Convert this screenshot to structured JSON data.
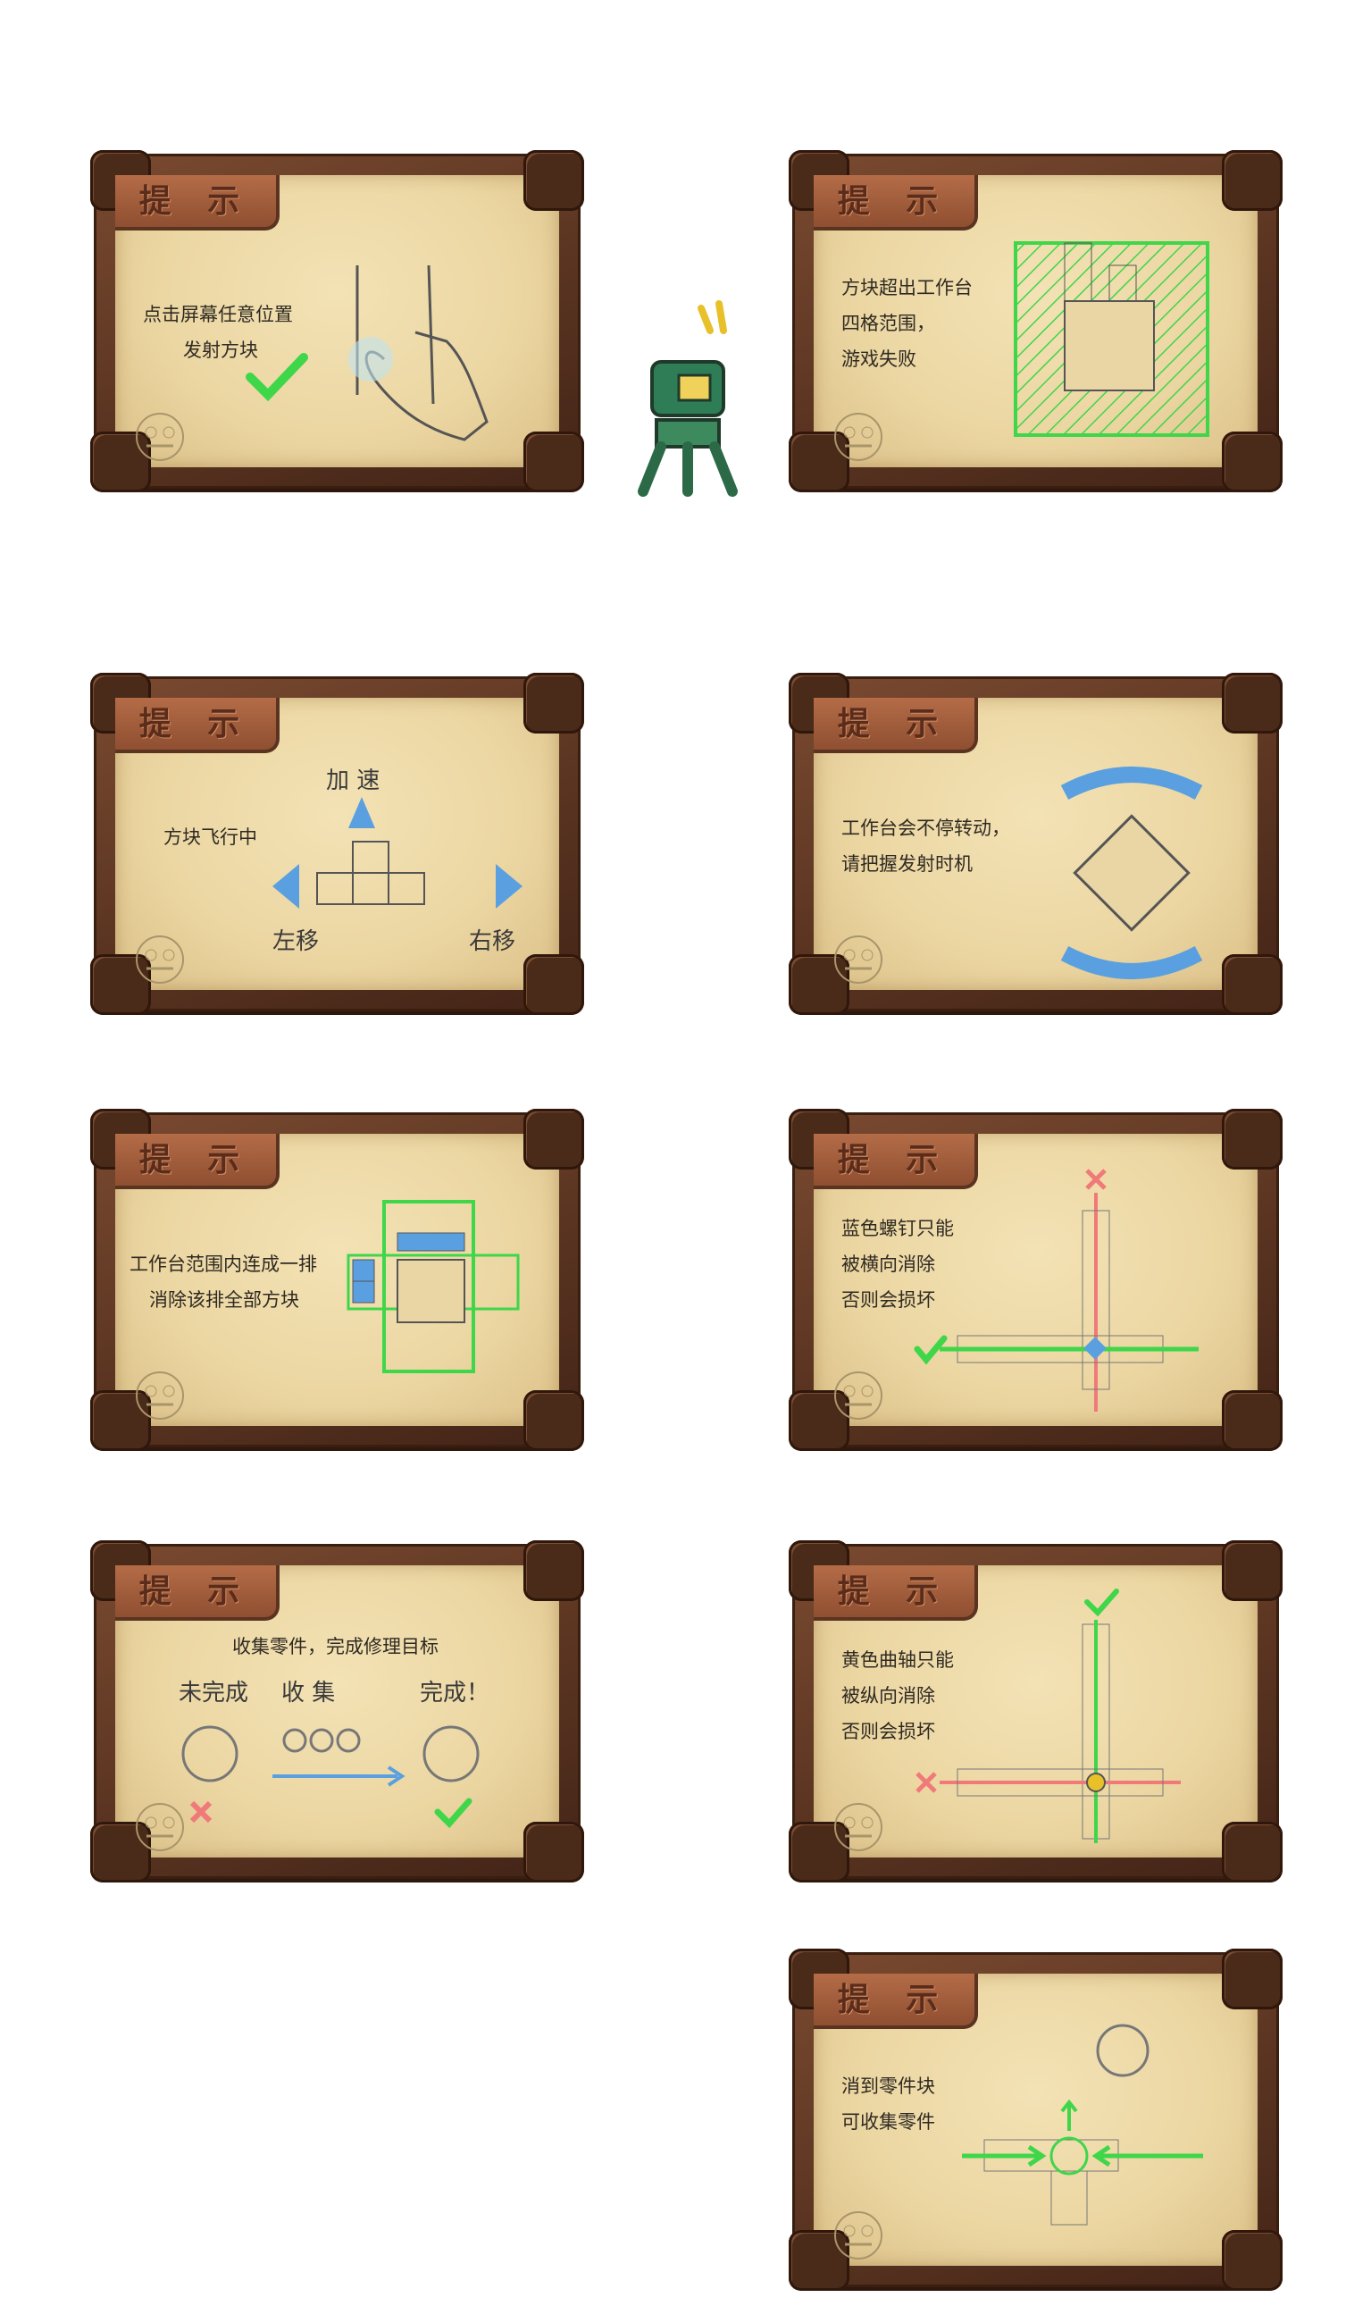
{
  "cards": [
    {
      "tab": "提 示",
      "lines": [
        "点击屏幕任意位置",
        "发射方块"
      ]
    },
    {
      "tab": "提 示",
      "lines": [
        "方块超出工作台",
        "四格范围，",
        "游戏失败"
      ]
    },
    {
      "tab": "提 示",
      "lines": [
        "方块飞行中"
      ],
      "labels": {
        "speed": "加 速",
        "left": "左移",
        "right": "右移"
      }
    },
    {
      "tab": "提 示",
      "lines": [
        "工作台会不停转动，",
        "请把握发射时机"
      ]
    },
    {
      "tab": "提 示",
      "lines": [
        "工作台范围内连成一排",
        "消除该排全部方块"
      ]
    },
    {
      "tab": "提 示",
      "lines": [
        "蓝色螺钉只能",
        "被横向消除",
        "否则会损坏"
      ]
    },
    {
      "tab": "提 示",
      "lines": [
        "收集零件，完成修理目标"
      ],
      "labels": {
        "unfinished": "未完成",
        "collect": "收 集",
        "done": "完成！"
      }
    },
    {
      "tab": "提 示",
      "lines": [
        "黄色曲轴只能",
        "被纵向消除",
        "否则会损坏"
      ]
    },
    {
      "tab": "提 示",
      "lines": [
        "消到零件块",
        "可收集零件"
      ]
    }
  ],
  "colors": {
    "green": "#3fd64a",
    "red": "#f07a7a",
    "blue": "#5aa0e0",
    "frame": "#5a3421"
  }
}
